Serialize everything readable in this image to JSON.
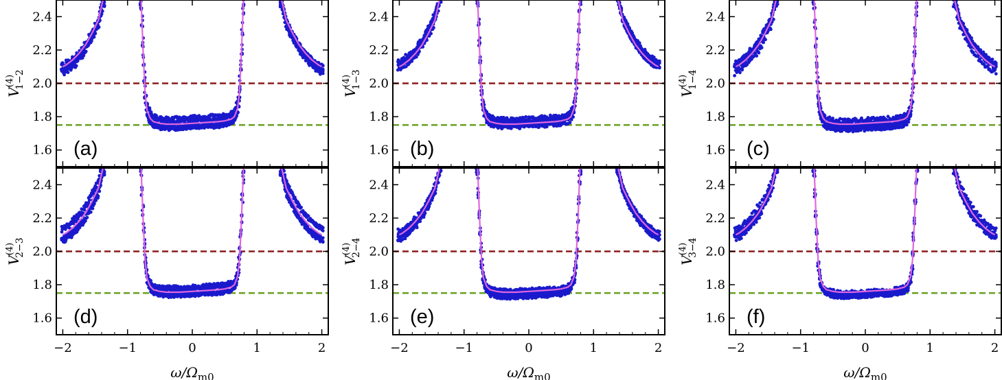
{
  "chart_data": {
    "type": "scatter",
    "layout": "2 rows x 3 columns, shared axes",
    "xlim": [
      -2.1,
      2.1
    ],
    "ylim": [
      1.5,
      2.5
    ],
    "xticks": [
      -2,
      -1,
      0,
      1,
      2
    ],
    "xtick_labels": [
      "−2",
      "−1",
      "0",
      "1",
      "2"
    ],
    "yticks": [
      1.6,
      1.8,
      2.0,
      2.2,
      2.4
    ],
    "ytick_labels": [
      "1.6",
      "1.8",
      "2.0",
      "2.2",
      "2.4"
    ],
    "xlabel_parts": {
      "omega": "ω/Ω",
      "subscript": "m0"
    },
    "reference_lines": [
      {
        "name": "upper-threshold",
        "y": 2.0,
        "color": "#8b1a1a",
        "style": "dashed"
      },
      {
        "name": "lower-threshold",
        "y": 1.75,
        "color": "#6aa121",
        "style": "dashed"
      }
    ],
    "series_colors": {
      "data_points": "#1a1acc",
      "theory_curve": "#e066e0"
    },
    "curve": {
      "description": "theory curve V(omega), symmetric about omega=0",
      "center_branch_x": [
        -0.79,
        -0.76,
        -0.73,
        -0.7,
        -0.65,
        -0.6,
        -0.5,
        -0.4,
        -0.2,
        0.0,
        0.2,
        0.4,
        0.5,
        0.6,
        0.65,
        0.7,
        0.73,
        0.76,
        0.79
      ],
      "center_branch_y": [
        2.5,
        2.2,
        1.95,
        1.84,
        1.79,
        1.77,
        1.76,
        1.755,
        1.755,
        1.76,
        1.765,
        1.77,
        1.775,
        1.785,
        1.8,
        1.85,
        1.95,
        2.2,
        2.5
      ],
      "outer_branch_x": [
        1.38,
        1.45,
        1.55,
        1.65,
        1.75,
        1.85,
        1.95,
        2.0
      ],
      "outer_branch_y": [
        2.5,
        2.38,
        2.3,
        2.23,
        2.18,
        2.14,
        2.11,
        2.1
      ]
    },
    "panels": [
      {
        "label": "(a)",
        "ylabel_sub": "1−2",
        "jitter": 0.025,
        "seed": 11
      },
      {
        "label": "(b)",
        "ylabel_sub": "1−3",
        "jitter": 0.022,
        "seed": 23
      },
      {
        "label": "(c)",
        "ylabel_sub": "1−4",
        "jitter": 0.028,
        "seed": 37
      },
      {
        "label": "(d)",
        "ylabel_sub": "2−3",
        "jitter": 0.024,
        "seed": 41
      },
      {
        "label": "(e)",
        "ylabel_sub": "2−4",
        "jitter": 0.02,
        "seed": 53
      },
      {
        "label": "(f)",
        "ylabel_sub": "3−4",
        "jitter": 0.026,
        "seed": 67
      }
    ],
    "ylabel_symbol": "V",
    "ylabel_superscript": "(4)"
  }
}
